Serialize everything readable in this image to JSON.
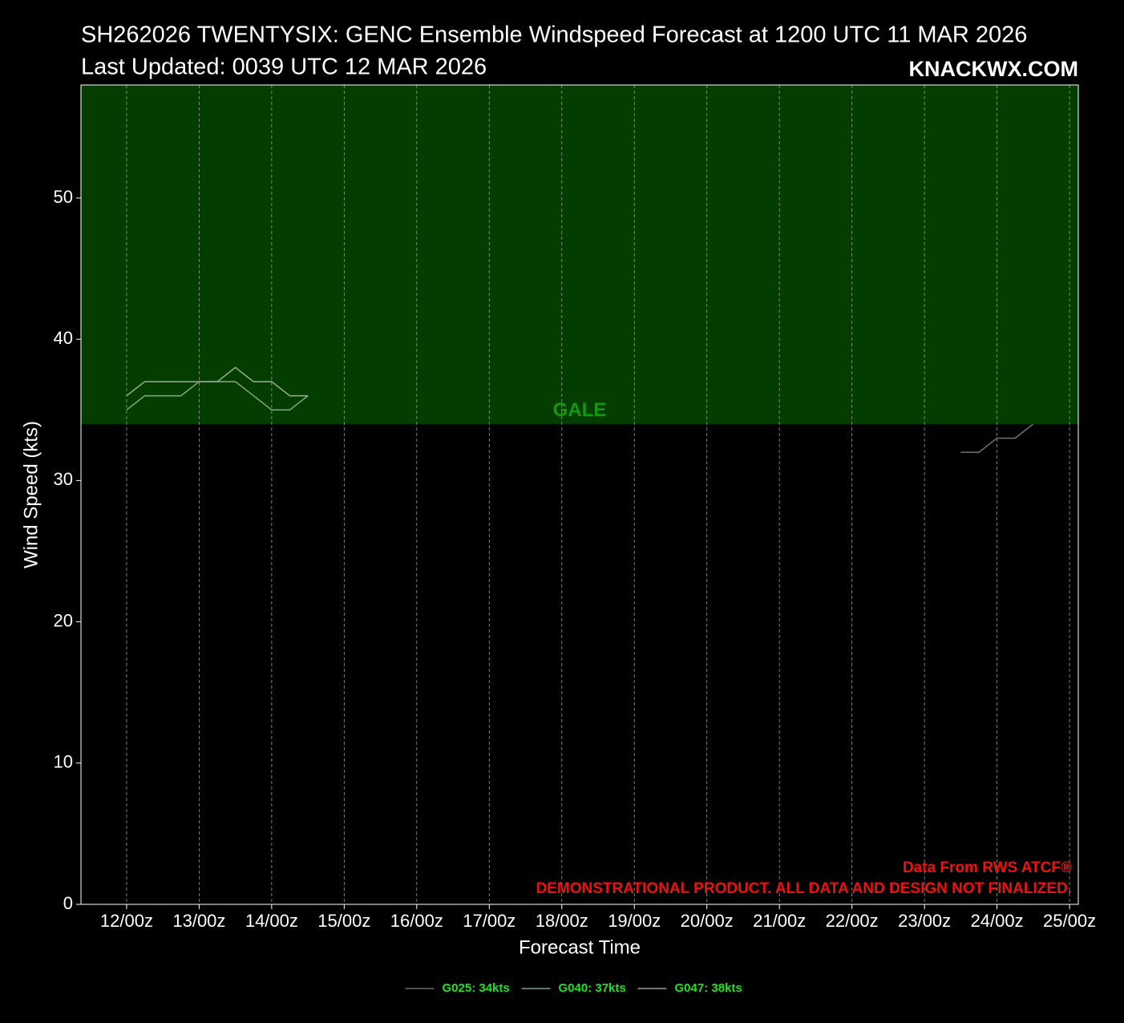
{
  "chart_data": {
    "type": "line",
    "title": "SH262026 TWENTYSIX: GENC Ensemble Windspeed Forecast at 1200 UTC 11 MAR 2026",
    "subtitle": "Last Updated: 0039 UTC 12 MAR 2026",
    "watermark": "KNACKWX.COM",
    "x_label": "Forecast Time",
    "y_label": "Wind Speed (kts)",
    "annotations": [
      "Data From RWS ATCF®",
      "DEMONSTRATIONAL PRODUCT. ALL DATA AND DESIGN NOT FINALIZED."
    ],
    "bands": [
      {
        "label": "GALE",
        "from": 34,
        "color": "#033d00",
        "label_color": "#109a10"
      }
    ],
    "xlim": [
      -15.1,
      314.9
    ],
    "xticks": [
      {
        "value": 0,
        "label": "12/00z"
      },
      {
        "value": 24,
        "label": "13/00z"
      },
      {
        "value": 48,
        "label": "14/00z"
      },
      {
        "value": 72,
        "label": "15/00z"
      },
      {
        "value": 96,
        "label": "16/00z"
      },
      {
        "value": 120,
        "label": "17/00z"
      },
      {
        "value": 144,
        "label": "18/00z"
      },
      {
        "value": 168,
        "label": "19/00z"
      },
      {
        "value": 192,
        "label": "20/00z"
      },
      {
        "value": 216,
        "label": "21/00z"
      },
      {
        "value": 240,
        "label": "22/00z"
      },
      {
        "value": 264,
        "label": "23/00z"
      },
      {
        "value": 288,
        "label": "24/00z"
      },
      {
        "value": 312,
        "label": "25/00z"
      }
    ],
    "ylim": [
      0,
      58
    ],
    "yticks": [
      0,
      10,
      20,
      30,
      40,
      50
    ],
    "grid": "x",
    "series": [
      {
        "name": "G025: 34kts",
        "color": "#6a6a6a",
        "x": [
          276,
          282,
          288,
          294,
          300
        ],
        "values": [
          32,
          32,
          33,
          33,
          34
        ]
      },
      {
        "name": "G040: 37kts",
        "color": "#7f9e7f",
        "x": [
          0,
          6,
          12,
          18,
          24,
          30,
          36,
          42,
          48,
          54,
          60
        ],
        "values": [
          35,
          36,
          36,
          36,
          37,
          37,
          37,
          36,
          35,
          35,
          36
        ]
      },
      {
        "name": "G047: 38kts",
        "color": "#8fa58f",
        "x": [
          0,
          6,
          12,
          18,
          24,
          30,
          36,
          42,
          48,
          54,
          60
        ],
        "values": [
          36,
          37,
          37,
          37,
          37,
          37,
          38,
          37,
          37,
          36,
          36
        ]
      }
    ],
    "legend_text_color": "#22e022",
    "annotation_color": "#ee1111"
  }
}
